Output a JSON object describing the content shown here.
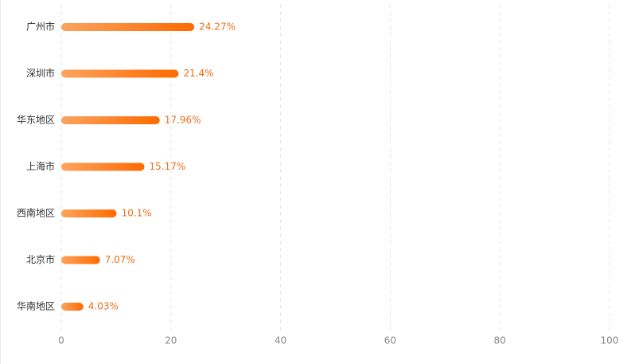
{
  "chart_data": {
    "type": "bar",
    "orientation": "horizontal",
    "categories": [
      "广州市",
      "深圳市",
      "华东地区",
      "上海市",
      "西南地区",
      "北京市",
      "华南地区"
    ],
    "values": [
      24.27,
      21.4,
      17.96,
      15.17,
      10.1,
      7.07,
      4.03
    ],
    "value_labels": [
      "24.27%",
      "21.4%",
      "17.96%",
      "15.17%",
      "10.1%",
      "7.07%",
      "4.03%"
    ],
    "color": [
      "#fba35f",
      "#ff6a00"
    ],
    "label_color": "#e8701a",
    "xlim": [
      0,
      100
    ],
    "xticks": [
      0,
      20,
      40,
      60,
      80,
      100
    ],
    "grid": true
  }
}
